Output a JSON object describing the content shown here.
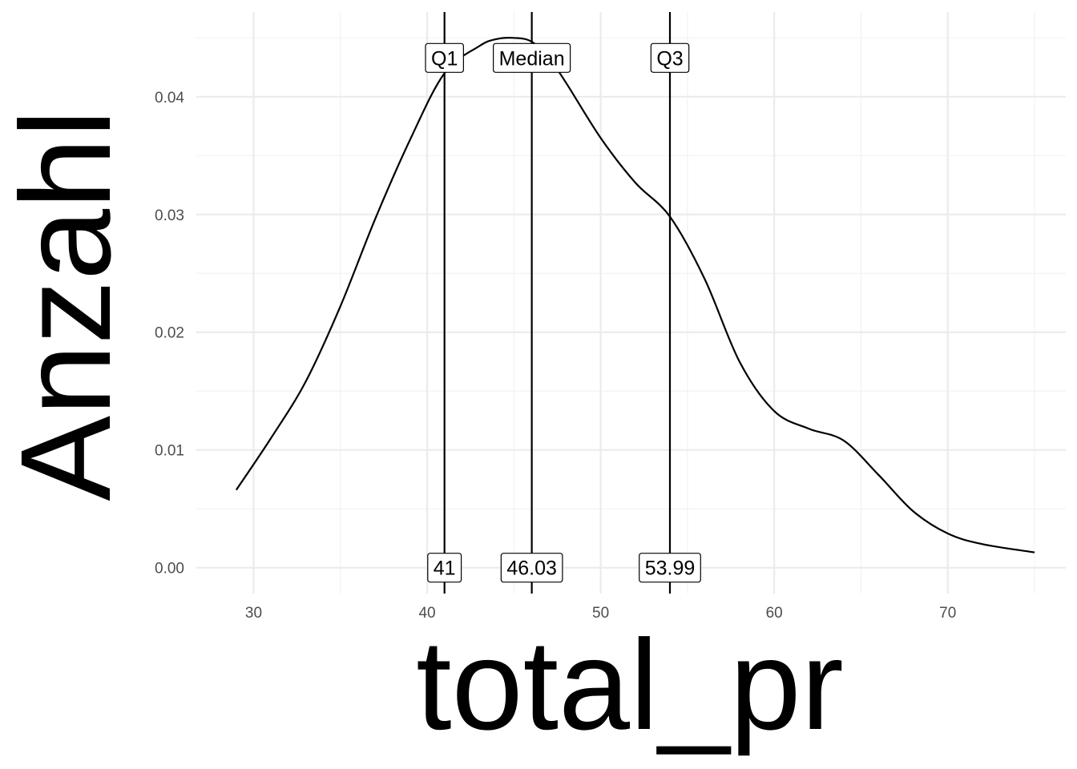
{
  "chart_data": {
    "type": "line",
    "subtype": "density",
    "title": "",
    "xlabel": "total_pr",
    "ylabel": "Anzahl",
    "xlim": [
      26.7,
      76.8
    ],
    "ylim": [
      -0.0022,
      0.0472
    ],
    "x_ticks": [
      30,
      40,
      50,
      60,
      70
    ],
    "x_tick_labels": [
      "30",
      "40",
      "50",
      "60",
      "70"
    ],
    "y_ticks": [
      0.0,
      0.01,
      0.02,
      0.03,
      0.04
    ],
    "y_tick_labels": [
      "0.00",
      "0.01",
      "0.02",
      "0.03",
      "0.04"
    ],
    "grid": true,
    "legend": "none",
    "series": [
      {
        "x": [
          29.0,
          31.0,
          33.0,
          35.0,
          37.0,
          39.0,
          41.0,
          43.0,
          44.0,
          45.0,
          46.0,
          47.0,
          48.0,
          50.0,
          52.0,
          54.0,
          56.0,
          58.0,
          60.0,
          62.0,
          64.0,
          66.0,
          68.0,
          70.0,
          72.0,
          75.0
        ],
        "y": [
          0.0066,
          0.011,
          0.0158,
          0.0222,
          0.0296,
          0.0363,
          0.042,
          0.0443,
          0.0449,
          0.045,
          0.0447,
          0.0433,
          0.0412,
          0.0365,
          0.0327,
          0.0298,
          0.0245,
          0.0175,
          0.0133,
          0.0118,
          0.0108,
          0.0079,
          0.0048,
          0.0029,
          0.002,
          0.0013
        ]
      }
    ],
    "vlines": [
      {
        "x": 41.0,
        "top_label": "Q1",
        "bottom_label": "41"
      },
      {
        "x": 46.03,
        "top_label": "Median",
        "bottom_label": "46.03"
      },
      {
        "x": 53.99,
        "top_label": "Q3",
        "bottom_label": "53.99"
      }
    ],
    "label_y_top": 0.0433,
    "label_y_bottom": 0.0
  },
  "colors": {
    "background": "#ffffff",
    "grid_major": "#ebebeb",
    "grid_minor": "#f2f2f2",
    "line": "#000000",
    "tick_text": "#4d4d4d"
  }
}
